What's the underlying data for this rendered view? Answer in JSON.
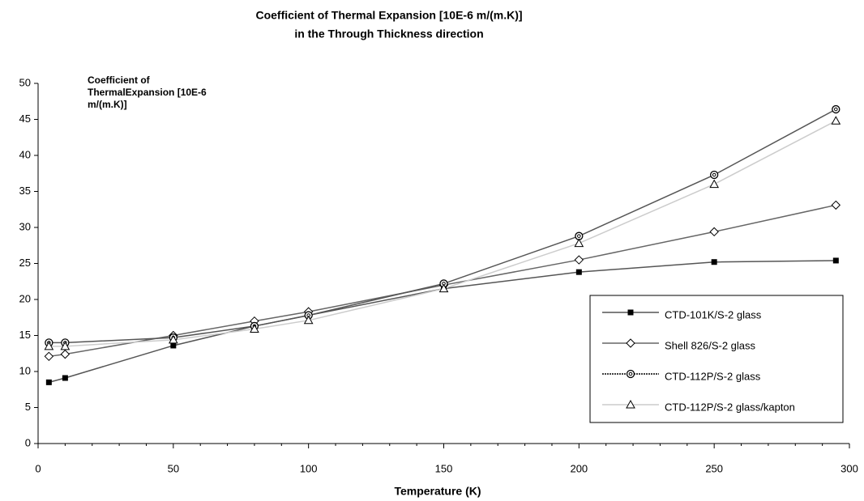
{
  "chart_data": {
    "type": "line",
    "title": "Coefficient of Thermal Expansion [10E-6 m/(m.K)]",
    "subtitle": "in the Through Thickness direction",
    "y_label": "Coefficient of ThermalExpansion [10E-6 m/(m.K)]",
    "x_label": "Temperature (K)",
    "x": [
      4,
      10,
      50,
      80,
      100,
      150,
      200,
      250,
      295
    ],
    "series": [
      {
        "name": "CTD-101K/S-2 glass",
        "color": "#555555",
        "marker": "square",
        "values": [
          8.5,
          9.1,
          13.6,
          16.3,
          17.8,
          21.5,
          23.8,
          25.2,
          25.4
        ]
      },
      {
        "name": "Shell 826/S-2 glass",
        "color": "#666666",
        "marker": "diamond",
        "values": [
          12.1,
          12.4,
          15.0,
          17.0,
          18.3,
          22.0,
          25.5,
          29.4,
          33.1
        ]
      },
      {
        "name": "CTD-112P/S-2 glass",
        "color": "#555555",
        "marker": "circle",
        "values": [
          14.0,
          14.0,
          14.7,
          16.3,
          17.8,
          22.2,
          28.8,
          37.3,
          46.4
        ]
      },
      {
        "name": "CTD-112P/S-2 glass/kapton",
        "color": "#cccccc",
        "marker": "triangle",
        "values": [
          13.5,
          13.5,
          14.4,
          15.9,
          17.1,
          21.5,
          27.8,
          36.0,
          44.8
        ]
      }
    ],
    "xlim": [
      0,
      300
    ],
    "xticks": [
      0,
      50,
      100,
      150,
      200,
      250,
      300
    ],
    "ylim": [
      0,
      50
    ],
    "yticks": [
      0,
      5,
      10,
      15,
      20,
      25,
      30,
      35,
      40,
      45,
      50
    ],
    "grid": false,
    "legend": "lower right"
  }
}
